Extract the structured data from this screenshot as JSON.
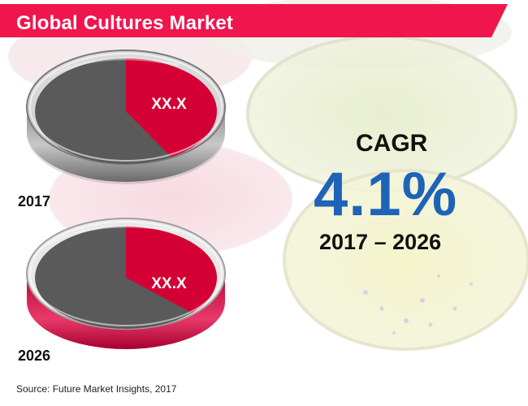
{
  "title": "Global Cultures Market",
  "cagr": {
    "label": "CAGR",
    "value": "4.1%",
    "period": "2017 – 2026"
  },
  "source": "Source: Future Market Insights, 2017",
  "colors": {
    "banner": "#f0154d",
    "segment_highlight": "#d40035",
    "segment_rest": "#5a5a5a",
    "cagr_value": "#1d63b8"
  },
  "chart_data": [
    {
      "type": "pie",
      "category": "2017",
      "highlight_label": "XX.X",
      "highlight_fraction": 0.41,
      "slices": [
        "highlight",
        "rest"
      ]
    },
    {
      "type": "pie",
      "category": "2026",
      "highlight_label": "XX.X",
      "highlight_fraction": 0.36,
      "slices": [
        "highlight",
        "rest"
      ]
    }
  ]
}
